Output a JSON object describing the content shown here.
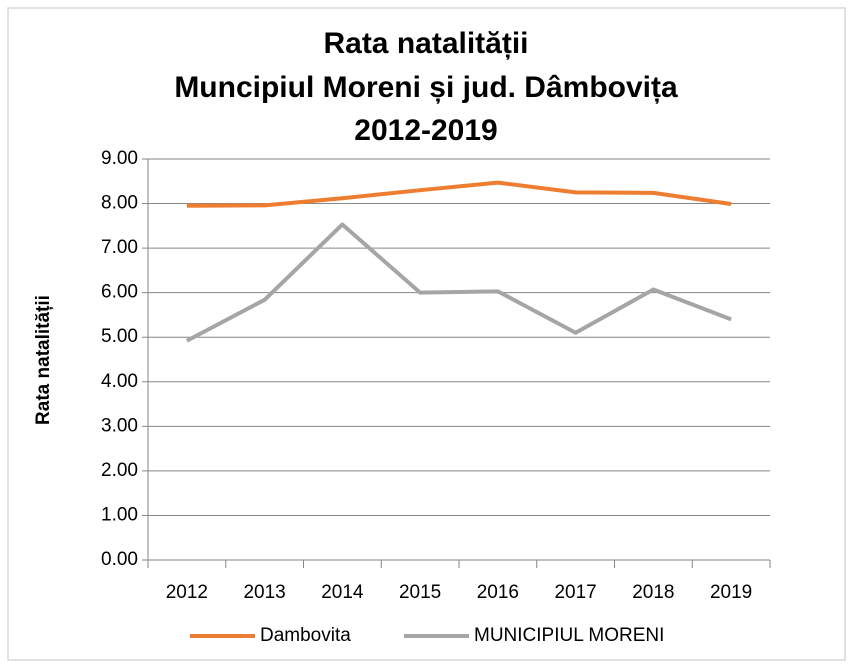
{
  "chart_data": {
    "type": "line",
    "title": [
      "Rata natalității",
      "Muncipiul Moreni și jud. Dâmbovița",
      "2012-2019"
    ],
    "y_label": "Rata natalității",
    "categories": [
      "2012",
      "2013",
      "2014",
      "2015",
      "2016",
      "2017",
      "2018",
      "2019"
    ],
    "series": [
      {
        "name": "Dambovita",
        "color": "#ED7D31",
        "values": [
          7.95,
          7.96,
          8.12,
          8.3,
          8.47,
          8.25,
          8.24,
          7.99
        ]
      },
      {
        "name": "MUNICIPIUL MORENI",
        "color": "#A5A5A5",
        "values": [
          4.92,
          5.84,
          7.53,
          6.0,
          6.03,
          5.1,
          6.07,
          5.4
        ]
      }
    ],
    "ylim": [
      0,
      9
    ],
    "yticks": [
      {
        "value": 0,
        "label": "0.00"
      },
      {
        "value": 1,
        "label": "1.00"
      },
      {
        "value": 2,
        "label": "2.00"
      },
      {
        "value": 3,
        "label": "3.00"
      },
      {
        "value": 4,
        "label": "4.00"
      },
      {
        "value": 5,
        "label": "5.00"
      },
      {
        "value": 6,
        "label": "6.00"
      },
      {
        "value": 7,
        "label": "7.00"
      },
      {
        "value": 8,
        "label": "8.00"
      },
      {
        "value": 9,
        "label": "9.00"
      }
    ],
    "grid": true,
    "legend": "bottom"
  }
}
